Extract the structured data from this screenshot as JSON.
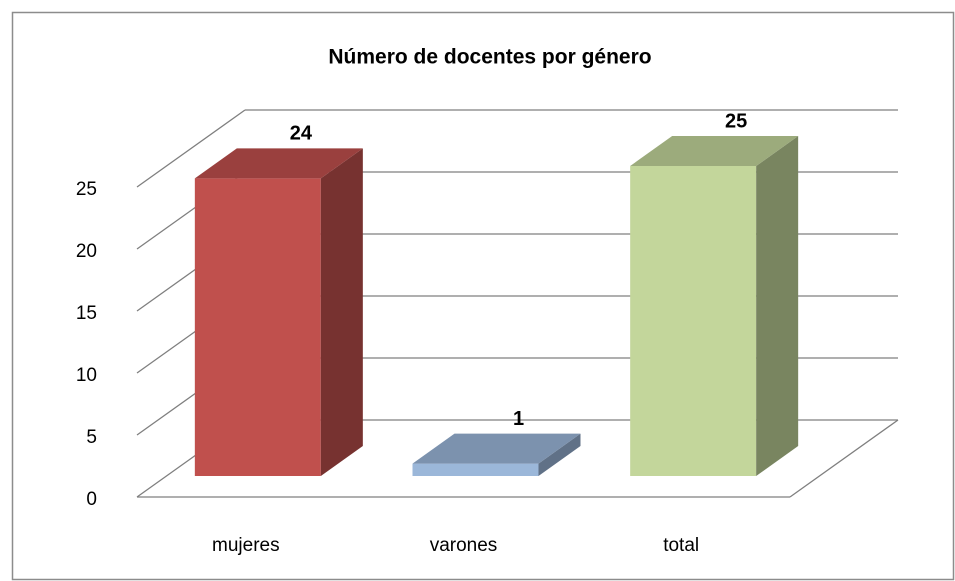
{
  "chart_data": {
    "type": "bar3d",
    "title": "Número de docentes por género",
    "categories": [
      "mujeres",
      "varones",
      "total"
    ],
    "values": [
      24,
      1,
      25
    ],
    "colors": [
      "#c0504d",
      "#9bb7d9",
      "#c3d69b"
    ],
    "ylim": [
      0,
      25
    ],
    "yticks": [
      0,
      5,
      10,
      15,
      20,
      25
    ],
    "grid": true
  }
}
